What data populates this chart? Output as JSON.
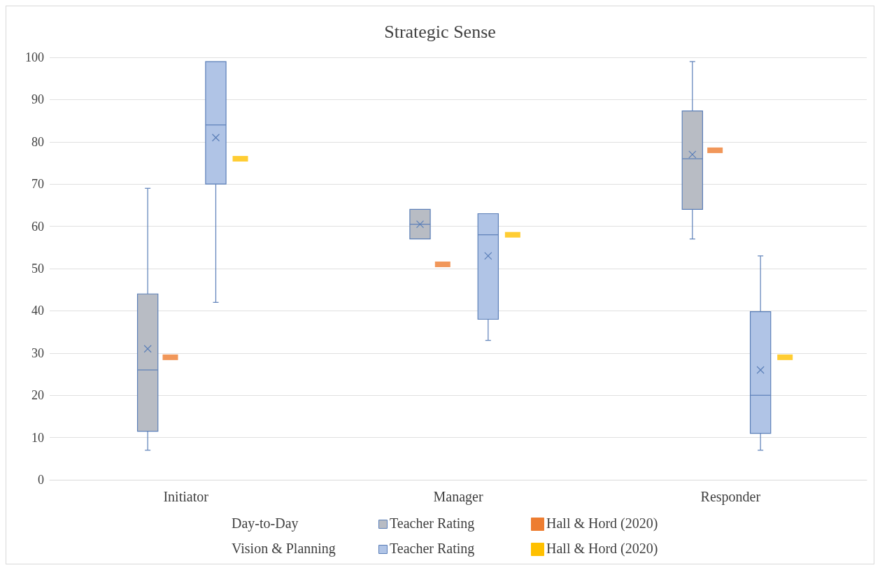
{
  "chart_data": {
    "type": "box",
    "title": "Strategic Sense",
    "categories": [
      "Initiator",
      "Manager",
      "Responder"
    ],
    "ylim": [
      0,
      100
    ],
    "yticks": [
      0,
      10,
      20,
      30,
      40,
      50,
      60,
      70,
      80,
      90,
      100
    ],
    "grid": "y",
    "legend": "bottom",
    "annotations": [
      "Day-to-Day",
      "Vision & Planning"
    ],
    "series": [
      {
        "name": "Teacher Rating",
        "color": "#b8bcc4",
        "boxes": [
          {
            "low": 7,
            "q1": 11.5,
            "median": 26,
            "q3": 44,
            "high": 69,
            "mean": 31
          },
          {
            "low": 57,
            "q1": 57,
            "median": 60.5,
            "q3": 64,
            "high": 64,
            "mean": 60.5
          },
          {
            "low": 57,
            "q1": 64,
            "median": 76,
            "q3": 87.3,
            "high": 99,
            "mean": 77
          }
        ]
      },
      {
        "type": "scatter",
        "name": "Hall & Hord (2020)",
        "color": "#ed7d31",
        "marker": "square",
        "x": [
          "Initiator",
          "Manager",
          "Responder"
        ],
        "values": [
          29,
          51,
          78
        ]
      },
      {
        "name": "Teacher Rating",
        "color": "#b0c4e6",
        "boxes": [
          {
            "low": 42,
            "q1": 70,
            "median": 84,
            "q3": 99,
            "high": 99,
            "mean": 81
          },
          {
            "low": 33,
            "q1": 38,
            "median": 58,
            "q3": 63,
            "high": 63,
            "mean": 53
          },
          {
            "low": 7,
            "q1": 11,
            "median": 20,
            "q3": 39.8,
            "high": 53,
            "mean": 26
          }
        ]
      },
      {
        "type": "scatter",
        "name": "Hall & Hord (2020)",
        "color": "#ffc000",
        "marker": "square",
        "x": [
          "Initiator",
          "Manager",
          "Responder"
        ],
        "values": [
          76,
          58,
          29
        ]
      }
    ]
  }
}
